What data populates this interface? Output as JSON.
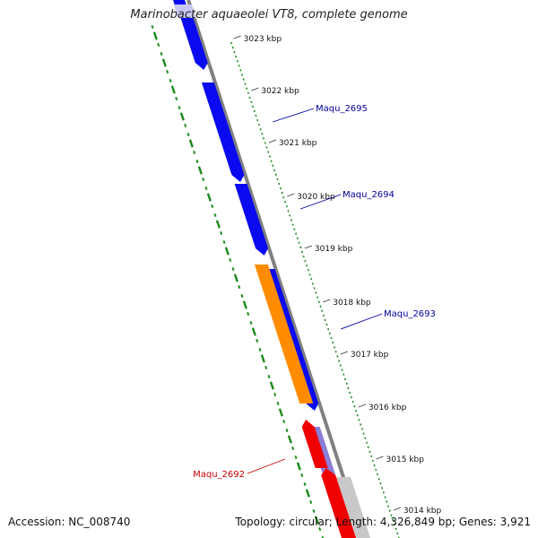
{
  "title": "Marinobacter aquaeolei VT8, complete genome",
  "footer": {
    "accession": "Accession: NC_008740",
    "stats": "Topology: circular; Length: 4,326,849 bp; Genes: 3,921"
  },
  "colors": {
    "backbone": "#808080",
    "gc_ticks": "#1a8a1a",
    "forward_gene": "#0a0af0",
    "reverse_gene": "#f00000",
    "highlight_gene": "#ff8c00",
    "pale_forward": "#c8c8f0",
    "lavender": "#8a7ed8",
    "grey_gene": "#c8c8c8",
    "blue_label": "#0000a0",
    "red_label": "#c80000"
  },
  "ticks": [
    {
      "label": "3023 kbp"
    },
    {
      "label": "3022 kbp"
    },
    {
      "label": "3021 kbp"
    },
    {
      "label": "3020 kbp"
    },
    {
      "label": "3019 kbp"
    },
    {
      "label": "3018 kbp"
    },
    {
      "label": "3017 kbp"
    },
    {
      "label": "3016 kbp"
    },
    {
      "label": "3015 kbp"
    },
    {
      "label": "3014 kbp"
    }
  ],
  "gene_labels": [
    {
      "name": "Maqu_2695",
      "color": "blue"
    },
    {
      "name": "Maqu_2694",
      "color": "blue"
    },
    {
      "name": "Maqu_2693",
      "color": "blue"
    },
    {
      "name": "Maqu_2692",
      "color": "red"
    }
  ]
}
